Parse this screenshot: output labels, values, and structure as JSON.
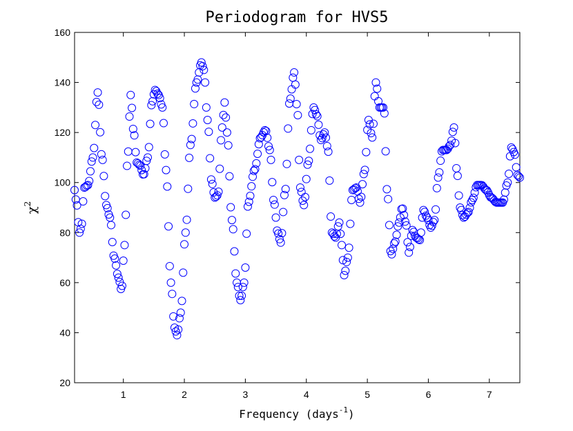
{
  "chart_data": {
    "type": "scatter",
    "title": "Periodogram for HVS5",
    "xlabel_main": "Frequency (days",
    "xlabel_sup": "-1",
    "xlabel_close": ")",
    "ylabel_main": "χ",
    "ylabel_sup": "2",
    "xlim": [
      0.2,
      7.5
    ],
    "ylim": [
      20,
      160
    ],
    "xticks": [
      1,
      2,
      3,
      4,
      5,
      6,
      7
    ],
    "yticks": [
      20,
      40,
      60,
      80,
      100,
      120,
      140,
      160
    ],
    "xtick_labels": [
      "1",
      "2",
      "3",
      "4",
      "5",
      "6",
      "7"
    ],
    "ytick_labels": [
      "20",
      "40",
      "60",
      "80",
      "100",
      "120",
      "140",
      "160"
    ],
    "marker": "open-circle",
    "marker_color": "#0000ff",
    "grid": false,
    "x_step": 0.02,
    "points_from_x": 0.2,
    "curve_keypoints": [
      [
        0.2,
        97
      ],
      [
        0.23,
        92
      ],
      [
        0.28,
        80
      ],
      [
        0.31,
        82
      ],
      [
        0.36,
        98
      ],
      [
        0.42,
        99
      ],
      [
        0.5,
        110
      ],
      [
        0.58,
        136
      ],
      [
        0.65,
        110
      ],
      [
        0.72,
        91
      ],
      [
        0.78,
        86
      ],
      [
        0.85,
        70
      ],
      [
        0.92,
        62
      ],
      [
        0.97,
        57
      ],
      [
        1.02,
        75
      ],
      [
        1.07,
        110
      ],
      [
        1.12,
        135
      ],
      [
        1.17,
        120
      ],
      [
        1.22,
        108
      ],
      [
        1.27,
        107
      ],
      [
        1.33,
        103
      ],
      [
        1.4,
        110
      ],
      [
        1.47,
        132
      ],
      [
        1.52,
        137
      ],
      [
        1.58,
        135
      ],
      [
        1.64,
        130
      ],
      [
        1.7,
        105
      ],
      [
        1.78,
        60
      ],
      [
        1.84,
        42
      ],
      [
        1.88,
        39
      ],
      [
        1.94,
        48
      ],
      [
        2.02,
        80
      ],
      [
        2.1,
        115
      ],
      [
        2.2,
        140
      ],
      [
        2.28,
        148
      ],
      [
        2.32,
        145
      ],
      [
        2.38,
        125
      ],
      [
        2.45,
        100
      ],
      [
        2.5,
        94
      ],
      [
        2.55,
        95
      ],
      [
        2.62,
        122
      ],
      [
        2.66,
        132
      ],
      [
        2.7,
        120
      ],
      [
        2.78,
        85
      ],
      [
        2.86,
        60
      ],
      [
        2.92,
        53
      ],
      [
        2.98,
        60
      ],
      [
        3.05,
        92
      ],
      [
        3.15,
        105
      ],
      [
        3.25,
        118
      ],
      [
        3.33,
        121
      ],
      [
        3.4,
        113
      ],
      [
        3.47,
        92
      ],
      [
        3.53,
        80
      ],
      [
        3.58,
        76
      ],
      [
        3.65,
        96
      ],
      [
        3.73,
        133
      ],
      [
        3.8,
        144
      ],
      [
        3.85,
        130
      ],
      [
        3.9,
        98
      ],
      [
        3.96,
        91
      ],
      [
        4.03,
        108
      ],
      [
        4.12,
        130
      ],
      [
        4.17,
        127
      ],
      [
        4.24,
        117
      ],
      [
        4.3,
        120
      ],
      [
        4.35,
        114
      ],
      [
        4.42,
        80
      ],
      [
        4.48,
        78
      ],
      [
        4.54,
        84
      ],
      [
        4.58,
        75
      ],
      [
        4.62,
        63
      ],
      [
        4.68,
        70
      ],
      [
        4.76,
        97
      ],
      [
        4.82,
        98
      ],
      [
        4.88,
        92
      ],
      [
        4.95,
        104
      ],
      [
        5.02,
        125
      ],
      [
        5.08,
        118
      ],
      [
        5.14,
        140
      ],
      [
        5.2,
        130
      ],
      [
        5.27,
        130
      ],
      [
        5.33,
        95
      ],
      [
        5.39,
        71
      ],
      [
        5.45,
        76
      ],
      [
        5.52,
        84
      ],
      [
        5.57,
        90
      ],
      [
        5.63,
        84
      ],
      [
        5.68,
        72
      ],
      [
        5.74,
        81
      ],
      [
        5.8,
        78
      ],
      [
        5.86,
        77
      ],
      [
        5.92,
        89
      ],
      [
        5.98,
        86
      ],
      [
        6.04,
        82
      ],
      [
        6.1,
        85
      ],
      [
        6.16,
        102
      ],
      [
        6.23,
        113
      ],
      [
        6.3,
        113
      ],
      [
        6.36,
        115
      ],
      [
        6.42,
        122
      ],
      [
        6.47,
        104
      ],
      [
        6.52,
        90
      ],
      [
        6.58,
        86
      ],
      [
        6.65,
        88
      ],
      [
        6.72,
        93
      ],
      [
        6.8,
        99
      ],
      [
        6.87,
        99
      ],
      [
        6.95,
        97
      ],
      [
        7.03,
        94
      ],
      [
        7.12,
        92
      ],
      [
        7.22,
        92
      ],
      [
        7.3,
        100
      ],
      [
        7.36,
        114
      ],
      [
        7.41,
        112
      ],
      [
        7.46,
        103
      ],
      [
        7.5,
        102
      ]
    ]
  }
}
